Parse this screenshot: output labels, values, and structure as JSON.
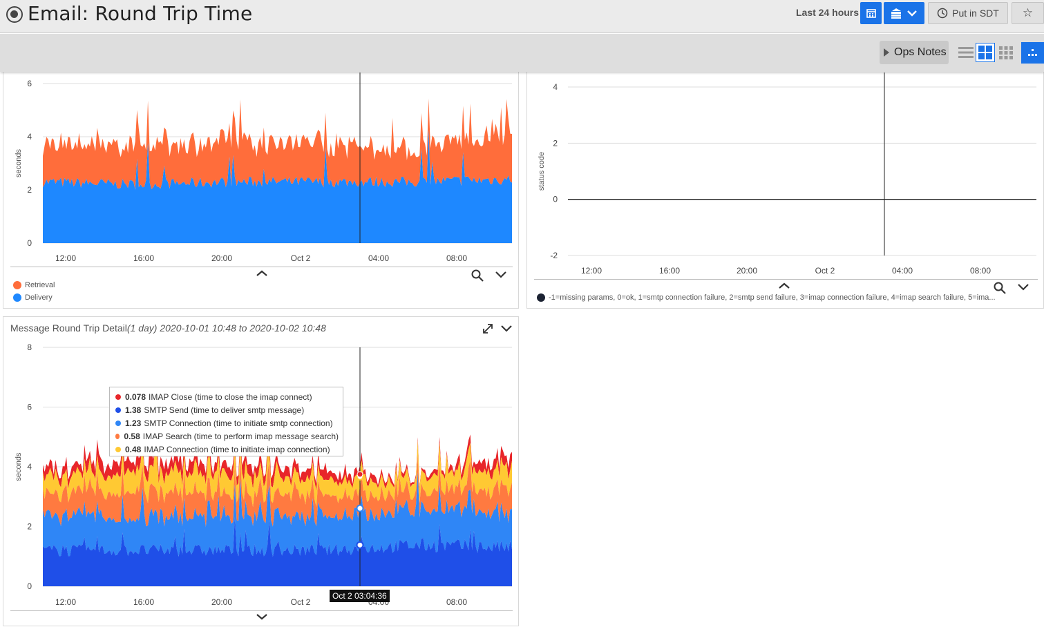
{
  "header": {
    "title": "Email: Round Trip Time",
    "range_label": "Last 24 hours",
    "sdt_label": "Put in SDT"
  },
  "toolbar": {
    "ops_notes_label": "Ops Notes"
  },
  "colors": {
    "retrieval": "#ff6d3b",
    "delivery": "#1e88ff",
    "imap_close": "#e8262a",
    "smtp_send": "#1f4fe8",
    "smtp_connection": "#2f86f6",
    "imap_search": "#ff7a40",
    "imap_connection": "#ffc933",
    "accent": "#1a73e8"
  },
  "panel1": {
    "ylabel": "seconds",
    "y_ticks": [
      "0",
      "2",
      "4",
      "6"
    ],
    "x_ticks": [
      "12:00",
      "16:00",
      "20:00",
      "Oct 2",
      "04:00",
      "08:00"
    ],
    "legend": [
      {
        "label": "Retrieval",
        "color": "#ff6d3b"
      },
      {
        "label": "Delivery",
        "color": "#1e88ff"
      }
    ]
  },
  "panel2": {
    "ylabel": "status code",
    "y_ticks": [
      "-2",
      "0",
      "2",
      "4"
    ],
    "x_ticks": [
      "12:00",
      "16:00",
      "20:00",
      "Oct 2",
      "04:00",
      "08:00"
    ],
    "legend": [
      {
        "label": "-1=missing params, 0=ok, 1=smtp connection failure, 2=smtp send failure, 3=imap connection failure, 4=imap search failure, 5=ima...",
        "color": "#1c2333"
      }
    ]
  },
  "panel3": {
    "title": "Message Round Trip Detail",
    "title_range": "(1 day) 2020-10-01 10:48 to 2020-10-02 10:48",
    "ylabel": "seconds",
    "y_ticks": [
      "0",
      "2",
      "4",
      "6",
      "8"
    ],
    "x_ticks": [
      "12:00",
      "16:00",
      "20:00",
      "Oct 2",
      "04:00",
      "08:00"
    ],
    "tooltip": [
      {
        "value": "0.078",
        "label": "IMAP Close (time to close the imap connect)",
        "color": "#e8262a"
      },
      {
        "value": "1.38",
        "label": "SMTP Send (time to deliver smtp message)",
        "color": "#1f4fe8"
      },
      {
        "value": "1.23",
        "label": "SMTP Connection (time to initiate smtp connection)",
        "color": "#2f86f6"
      },
      {
        "value": "0.58",
        "label": "IMAP Search (time to perform imap message search)",
        "color": "#ff7a40"
      },
      {
        "value": "0.48",
        "label": "IMAP Connection (time to initiate imap connection)",
        "color": "#ffc933"
      }
    ],
    "cursor_time": "Oct 2 03:04:36"
  },
  "chart_data": [
    {
      "type": "area",
      "title": "",
      "ylabel": "seconds",
      "ylim": [
        0,
        6
      ],
      "x": [
        "12:00",
        "16:00",
        "20:00",
        "Oct 2",
        "04:00",
        "08:00"
      ],
      "series": [
        {
          "name": "Delivery",
          "values": [
            2.3,
            2.2,
            2.3,
            2.3,
            2.3,
            2.4
          ]
        },
        {
          "name": "Retrieval",
          "values": [
            1.4,
            1.5,
            1.5,
            1.4,
            1.2,
            1.8
          ]
        }
      ]
    },
    {
      "type": "line",
      "title": "",
      "ylabel": "status code",
      "ylim": [
        -2,
        4
      ],
      "x": [
        "12:00",
        "16:00",
        "20:00",
        "Oct 2",
        "04:00",
        "08:00"
      ],
      "series": [
        {
          "values": [
            0,
            0,
            0,
            0,
            0,
            0
          ]
        }
      ]
    },
    {
      "type": "area",
      "title": "Message Round Trip Detail",
      "ylabel": "seconds",
      "ylim": [
        0,
        8
      ],
      "x": [
        "12:00",
        "16:00",
        "20:00",
        "Oct 2",
        "04:00",
        "08:00"
      ],
      "series": [
        {
          "name": "SMTP Send (time to deliver smtp message)",
          "values": [
            1.2,
            1.2,
            1.2,
            1.2,
            1.38,
            1.3
          ]
        },
        {
          "name": "SMTP Connection (time to initiate smtp connection)",
          "values": [
            1.1,
            1.1,
            1.1,
            1.1,
            1.23,
            1.1
          ]
        },
        {
          "name": "IMAP Search (time to perform imap message search)",
          "values": [
            0.7,
            0.9,
            0.7,
            0.7,
            0.58,
            0.8
          ]
        },
        {
          "name": "IMAP Connection (time to initiate imap connection)",
          "values": [
            0.5,
            0.7,
            0.6,
            0.5,
            0.48,
            0.7
          ]
        },
        {
          "name": "IMAP Close (time to close the imap connect)",
          "values": [
            0.3,
            0.4,
            0.3,
            0.3,
            0.078,
            0.4
          ]
        }
      ]
    }
  ]
}
